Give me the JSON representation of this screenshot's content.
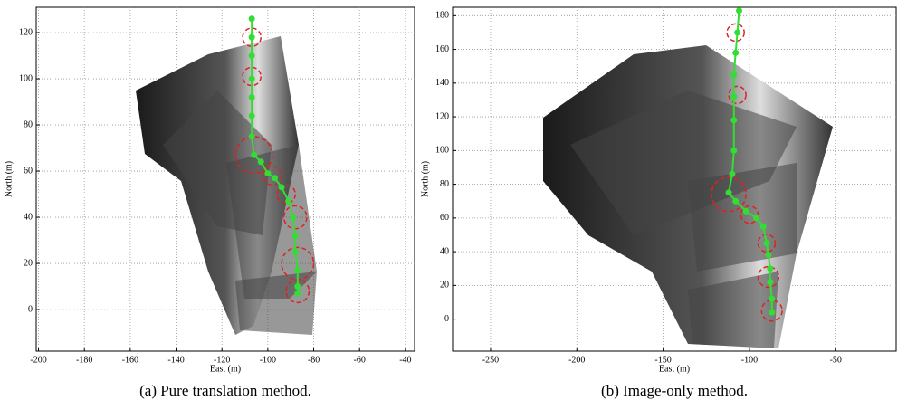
{
  "chart_data": [
    {
      "type": "line",
      "caption": "(a) Pure translation method.",
      "xlabel": "East (m)",
      "ylabel": "North (m)",
      "xlim": [
        -201,
        -36
      ],
      "ylim": [
        -18,
        131
      ],
      "xticks": [
        -200,
        -180,
        -160,
        -140,
        -120,
        -100,
        -80,
        -60,
        -40
      ],
      "yticks": [
        0,
        20,
        40,
        60,
        80,
        100,
        120
      ],
      "grid": true,
      "color": "#33dd33",
      "x": [
        -107,
        -107,
        -107,
        -107,
        -107,
        -107,
        -107,
        -106,
        -103,
        -100,
        -97,
        -94,
        -91,
        -89,
        -88,
        -88,
        -87,
        -87,
        -87
      ],
      "values": [
        126,
        118,
        110,
        100,
        92,
        84,
        75,
        67,
        64,
        59,
        57,
        53,
        47,
        40,
        32,
        25,
        17,
        10,
        7
      ],
      "circles": {
        "color": "#dd2222",
        "x": [
          -107,
          -107,
          -106,
          -98,
          -92,
          -88,
          -87,
          -87
        ],
        "y": [
          118,
          101,
          67,
          58,
          50,
          40,
          20,
          8
        ],
        "r": [
          4,
          4,
          8,
          4,
          4,
          5,
          7,
          5
        ]
      }
    },
    {
      "type": "line",
      "caption": "(b) Image-only method.",
      "xlabel": "East (m)",
      "ylabel": "North (m)",
      "xlim": [
        -272,
        -15
      ],
      "ylim": [
        -19,
        185
      ],
      "xticks": [
        -250,
        -200,
        -150,
        -100,
        -50
      ],
      "yticks": [
        0,
        20,
        40,
        60,
        80,
        100,
        120,
        140,
        160,
        180
      ],
      "grid": true,
      "color": "#33dd33",
      "x": [
        -106,
        -107,
        -108,
        -109,
        -109,
        -109,
        -109,
        -110,
        -112,
        -108,
        -102,
        -96,
        -92,
        -90,
        -89,
        -88,
        -88,
        -87,
        -87
      ],
      "values": [
        183,
        170,
        158,
        145,
        132,
        118,
        100,
        86,
        75,
        70,
        64,
        60,
        55,
        45,
        38,
        30,
        22,
        12,
        4
      ],
      "circles": {
        "color": "#dd2222",
        "x": [
          -108,
          -107,
          -112,
          -100,
          -90,
          -89,
          -87
        ],
        "y": [
          170,
          133,
          74,
          62,
          45,
          25,
          5
        ],
        "r": [
          5,
          5,
          10,
          5,
          5,
          6,
          6
        ]
      }
    }
  ]
}
